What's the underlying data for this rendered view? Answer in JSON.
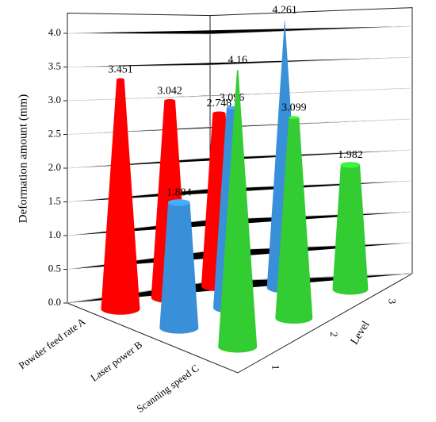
{
  "chart_data": {
    "type": "cone3d",
    "ylabel": "Deformation amount (mm)",
    "zlabel": "Level",
    "categories": [
      "Powder feed rate A",
      "Laser power B",
      "Scanning speed C"
    ],
    "z_categories": [
      "1",
      "2",
      "3"
    ],
    "series": [
      {
        "color": "#ff0000",
        "values": [
          3.451,
          3.042,
          2.748
        ]
      },
      {
        "color": "#3a8fd9",
        "values": [
          1.884,
          3.096,
          4.261
        ]
      },
      {
        "color": "#33cc33",
        "values": [
          4.16,
          3.099,
          1.982
        ]
      }
    ],
    "ylim": [
      0,
      4.3
    ],
    "yticks": [
      {
        "value": 0,
        "label": "0.0"
      },
      0.5,
      {
        "value": 1,
        "label": "1.0"
      },
      1.5,
      {
        "value": 2,
        "label": "2.0"
      },
      2.5,
      {
        "value": 3,
        "label": "3.0"
      },
      3.5,
      {
        "value": 4,
        "label": "4.0"
      }
    ],
    "grid": true
  }
}
